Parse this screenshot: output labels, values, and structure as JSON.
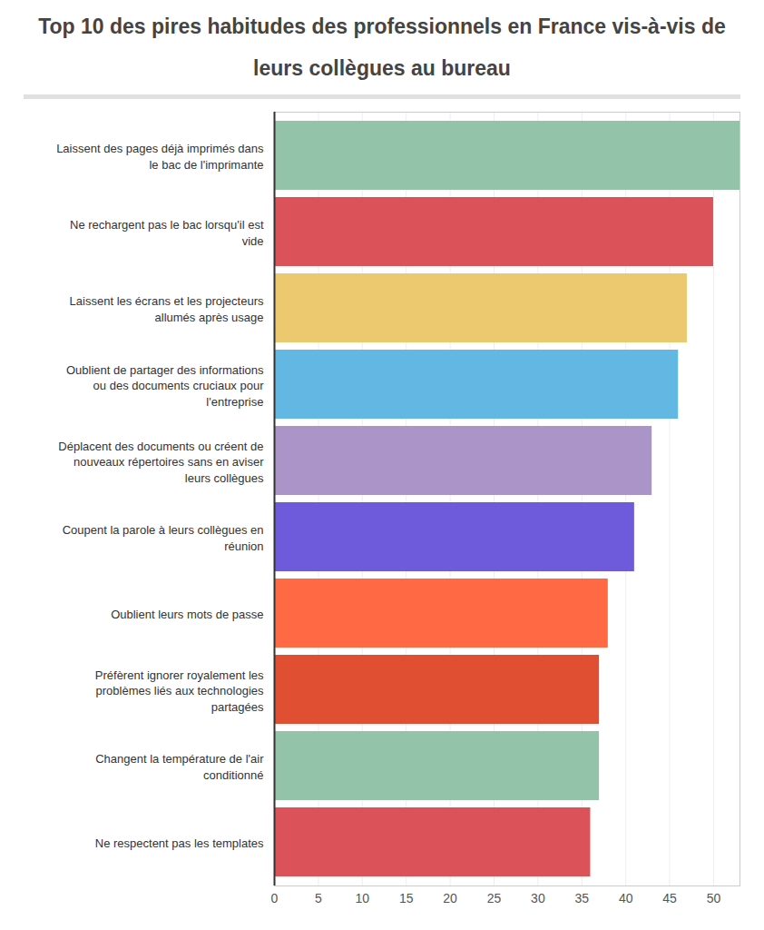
{
  "chart_data": {
    "type": "bar",
    "title": "Top 10 des pires habitudes des professionnels en France vis-à-vis de leurs collègues au bureau",
    "orientation": "horizontal",
    "categories": [
      "Laissent des pages déjà imprimés dans le bac de l'imprimante",
      "Ne rechargent pas le bac lorsqu'il est vide",
      "Laissent les écrans et les projecteurs allumés après usage",
      "Oublient de partager des informations ou des documents cruciaux pour l'entreprise",
      "Déplacent des documents ou créent de nouveaux répertoires sans en aviser leurs collègues",
      "Coupent la parole à leurs collègues en réunion",
      "Oublient leurs mots de passe",
      "Préfèrent ignorer royalement les problèmes liés aux technologies partagées",
      "Changent la température de l'air conditionné",
      "Ne respectent pas les templates"
    ],
    "values": [
      53,
      50,
      47,
      46,
      43,
      41,
      38,
      37,
      37,
      36
    ],
    "colors": [
      "#93c4aa",
      "#db5359",
      "#ecc96e",
      "#62b8e3",
      "#ab94c7",
      "#6e5bdb",
      "#ff6a45",
      "#e04f31",
      "#93c4aa",
      "#db5359"
    ],
    "xlim": [
      0,
      53
    ],
    "xticks": [
      0,
      5,
      10,
      15,
      20,
      25,
      30,
      35,
      40,
      45,
      50
    ],
    "grid": true
  }
}
